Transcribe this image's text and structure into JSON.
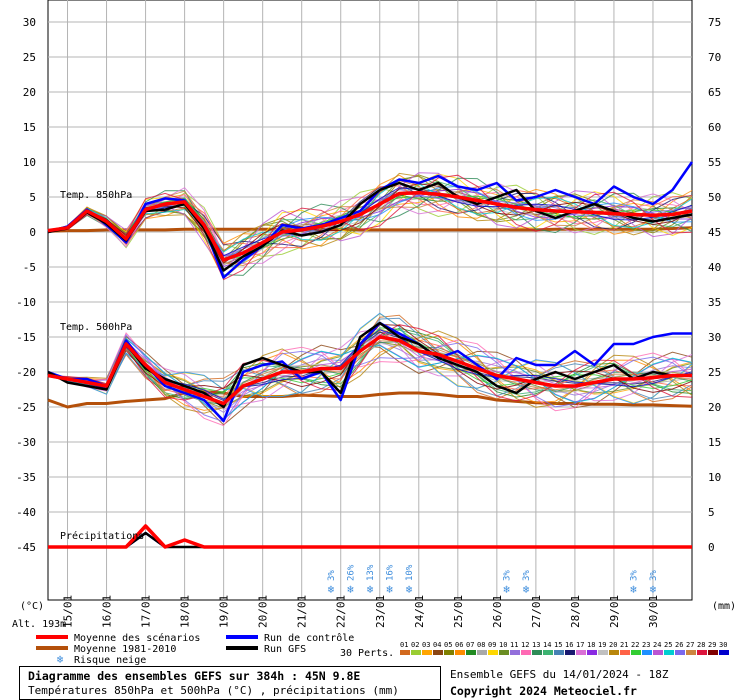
{
  "chart_data": {
    "type": "line",
    "title": "Diagramme des ensembles GEFS sur 384h : 45N 9.8E",
    "subtitle": "Températures 850hPa et 500hPa (°C) , précipitations (mm)",
    "y_left_ticks": [
      30,
      25,
      20,
      15,
      10,
      5,
      0,
      -5,
      -10,
      -15,
      -20,
      -25,
      -30,
      -35,
      -40,
      -45
    ],
    "y_right_ticks": [
      75,
      70,
      65,
      60,
      55,
      50,
      45,
      40,
      35,
      30,
      25,
      20,
      15,
      10,
      5,
      0
    ],
    "ylim": [
      -45,
      30
    ],
    "precip_ylim": [
      0,
      75
    ],
    "ylabel_left": "(°C)",
    "ylabel_right": "(mm)",
    "x_dates": [
      "15/01",
      "16/01",
      "17/01",
      "18/01",
      "19/01",
      "20/01",
      "21/01",
      "22/01",
      "23/01",
      "24/01",
      "25/01",
      "26/01",
      "27/01",
      "28/01",
      "29/01",
      "30/01"
    ],
    "x_start_hours": -12,
    "x_end_hours": 384,
    "panel_labels": [
      "Temp. 850hPa",
      "Temp. 500hPa",
      "Précipitations"
    ],
    "altitude_label": "Alt. 193m",
    "hours": [
      -12,
      0,
      12,
      24,
      36,
      48,
      60,
      72,
      84,
      96,
      108,
      120,
      132,
      144,
      156,
      168,
      180,
      192,
      204,
      216,
      228,
      240,
      252,
      264,
      276,
      288,
      300,
      312,
      324,
      336,
      348,
      360,
      372,
      384
    ],
    "series": [
      {
        "name": "Moyenne des scénarios",
        "group": "t850",
        "values": [
          0.2,
          0.6,
          3,
          1.5,
          -1,
          3.2,
          4,
          4.3,
          1,
          -4,
          -3,
          -1.5,
          0,
          0.3,
          0.8,
          1.5,
          2.5,
          4,
          5.5,
          5.6,
          5.4,
          5,
          4.5,
          4,
          3.5,
          3.2,
          3,
          2.9,
          2.8,
          2.6,
          2.5,
          2.4,
          2.5,
          3
        ]
      },
      {
        "name": "Run de contrôle",
        "group": "t850",
        "values": [
          0,
          0.8,
          3.2,
          1,
          -1.5,
          4,
          4.8,
          4.5,
          0.8,
          -6.5,
          -4,
          -2,
          1,
          0.5,
          1,
          2,
          3,
          6,
          7.5,
          7,
          8,
          6.5,
          6,
          7,
          4.5,
          5,
          6,
          5,
          4,
          6.5,
          5,
          4,
          6,
          10
        ]
      },
      {
        "name": "Run GFS",
        "group": "t850",
        "values": [
          0,
          0.5,
          2.8,
          1.2,
          -1.2,
          3,
          3.2,
          4,
          0.5,
          -5.5,
          -3.5,
          -2,
          0.2,
          -0.5,
          0,
          1,
          4,
          6,
          7,
          6,
          7,
          5,
          4,
          5,
          6,
          3,
          2,
          3,
          4,
          3,
          2,
          1.5,
          2,
          2.5
        ]
      },
      {
        "name": "Moyenne 1981-2010",
        "group": "t850",
        "values": [
          0.1,
          0.2,
          0.2,
          0.3,
          0.3,
          0.3,
          0.3,
          0.4,
          0.4,
          0.4,
          0.4,
          0.4,
          0.4,
          0.4,
          0.4,
          0.4,
          0.3,
          0.3,
          0.3,
          0.3,
          0.3,
          0.3,
          0.3,
          0.3,
          0.3,
          0.3,
          0.4,
          0.4,
          0.4,
          0.4,
          0.4,
          0.4,
          0.5,
          0.6
        ]
      },
      {
        "name": "Moyenne des scénarios",
        "group": "t500",
        "values": [
          -20.5,
          -21,
          -21.5,
          -22,
          -16,
          -19,
          -21.5,
          -22.5,
          -23.5,
          -24.5,
          -22,
          -21,
          -20,
          -20,
          -19.5,
          -19.5,
          -17,
          -15,
          -15.5,
          -17,
          -17.5,
          -18.5,
          -19.5,
          -20.5,
          -21,
          -21.5,
          -22,
          -22,
          -21.5,
          -21,
          -21,
          -20.8,
          -20.5,
          -20.5
        ]
      },
      {
        "name": "Run de contrôle",
        "group": "t500",
        "values": [
          -20,
          -21,
          -21,
          -22,
          -15.5,
          -19,
          -22,
          -23,
          -24,
          -27,
          -20,
          -19,
          -18.5,
          -21,
          -20,
          -24,
          -16,
          -13,
          -14.5,
          -16,
          -18,
          -17,
          -19,
          -21,
          -18,
          -19,
          -19,
          -17,
          -19,
          -16,
          -16,
          -15,
          -14.5,
          -14.5
        ]
      },
      {
        "name": "Run GFS",
        "group": "t500",
        "values": [
          -20,
          -21.5,
          -22,
          -22.5,
          -16,
          -19.5,
          -21,
          -22,
          -23,
          -25,
          -19,
          -18,
          -19,
          -20,
          -20,
          -23,
          -15,
          -13,
          -15,
          -16,
          -18,
          -19,
          -20,
          -22,
          -23,
          -21,
          -20,
          -21,
          -20,
          -19,
          -21,
          -20,
          -20.5,
          -20.5
        ]
      },
      {
        "name": "Moyenne 1981-2010",
        "group": "t500",
        "values": [
          -24,
          -25,
          -24.5,
          -24.5,
          -24.2,
          -24,
          -23.8,
          -23,
          -22.8,
          -23,
          -23.5,
          -23.5,
          -23.5,
          -23.3,
          -23.4,
          -23.5,
          -23.5,
          -23.2,
          -23,
          -23,
          -23.2,
          -23.5,
          -23.5,
          -24,
          -24.2,
          -24.4,
          -24.5,
          -24.5,
          -24.6,
          -24.6,
          -24.7,
          -24.7,
          -24.8,
          -24.9
        ]
      },
      {
        "name": "Moyenne des scénarios",
        "group": "precip",
        "values": [
          0,
          0,
          0,
          0,
          0,
          3,
          0,
          1,
          0,
          0,
          0,
          0,
          0,
          0,
          0,
          0,
          0,
          0,
          0,
          0,
          0,
          0,
          0,
          0,
          0,
          0,
          0,
          0,
          0,
          0,
          0,
          0,
          0,
          0
        ]
      },
      {
        "name": "Run de contrôle",
        "group": "precip",
        "values": [
          0,
          0,
          0,
          0,
          0,
          2,
          0,
          1,
          0,
          0,
          0,
          0,
          0,
          0,
          0,
          0,
          0,
          0,
          0,
          0,
          0,
          0,
          0,
          0,
          0,
          0,
          0,
          0,
          0,
          0,
          0,
          0,
          0,
          0
        ]
      },
      {
        "name": "Run GFS",
        "group": "precip",
        "values": [
          0,
          0,
          0,
          0,
          0,
          2,
          0,
          0,
          0,
          0,
          0,
          0,
          0,
          0,
          0,
          0,
          0,
          0,
          0,
          0,
          0,
          0,
          0,
          0,
          0,
          0,
          0,
          0,
          0,
          0,
          0,
          0,
          0,
          0
        ]
      }
    ],
    "snow_risk": [
      {
        "hour": 162,
        "pct": "3%"
      },
      {
        "hour": 174,
        "pct": "26%"
      },
      {
        "hour": 186,
        "pct": "13%"
      },
      {
        "hour": 198,
        "pct": "16%"
      },
      {
        "hour": 210,
        "pct": "10%"
      },
      {
        "hour": 270,
        "pct": "3%"
      },
      {
        "hour": 282,
        "pct": "3%"
      },
      {
        "hour": 348,
        "pct": "3%"
      },
      {
        "hour": 360,
        "pct": "3%"
      }
    ],
    "legend": [
      {
        "label": "Moyenne des scénarios",
        "color": "#ff0000"
      },
      {
        "label": "Moyenne 1981-2010",
        "color": "#b4500a"
      },
      {
        "label": "Risque neige",
        "color": "#3c8cdc"
      },
      {
        "label": "Run de contrôle",
        "color": "#0000ff"
      },
      {
        "label": "Run GFS",
        "color": "#000000"
      }
    ],
    "perturbations_label": "30 Perts.",
    "perturbations": [
      "01",
      "02",
      "03",
      "04",
      "05",
      "06",
      "07",
      "08",
      "09",
      "10",
      "11",
      "12",
      "13",
      "14",
      "15",
      "16",
      "17",
      "18",
      "19",
      "20",
      "21",
      "22",
      "23",
      "24",
      "25",
      "26",
      "27",
      "28",
      "29",
      "30"
    ],
    "perturbation_colors": [
      "#d2691e",
      "#9acd32",
      "#ffa500",
      "#8b4513",
      "#808000",
      "#ff8c00",
      "#228b22",
      "#a9a9a9",
      "#ffd700",
      "#6b8e23",
      "#9370db",
      "#ff69b4",
      "#2e8b57",
      "#3cb371",
      "#4682b4",
      "#191970",
      "#da70d6",
      "#8a2be2",
      "#c0c0c0",
      "#b8860b",
      "#ff6347",
      "#32cd32",
      "#1e90ff",
      "#ba55d3",
      "#00ced1",
      "#7b68ee",
      "#cd853f",
      "#dc143c",
      "#800000",
      "#0000cd"
    ],
    "colors": {
      "mean": "#ff0000",
      "climo": "#b4500a",
      "control": "#0000ff",
      "gfs": "#000000",
      "snow": "#3c8cdc",
      "grid": "#b4b4b4"
    },
    "grid": true
  },
  "footer": {
    "title": "Diagramme des ensembles GEFS sur 384h : 45N 9.8E",
    "subtitle": "Températures 850hPa et 500hPa (°C) , précipitations (mm)",
    "run_info": "Ensemble GEFS du 14/01/2024 - 18Z",
    "copyright": "Copyright 2024 Meteociel.fr"
  }
}
